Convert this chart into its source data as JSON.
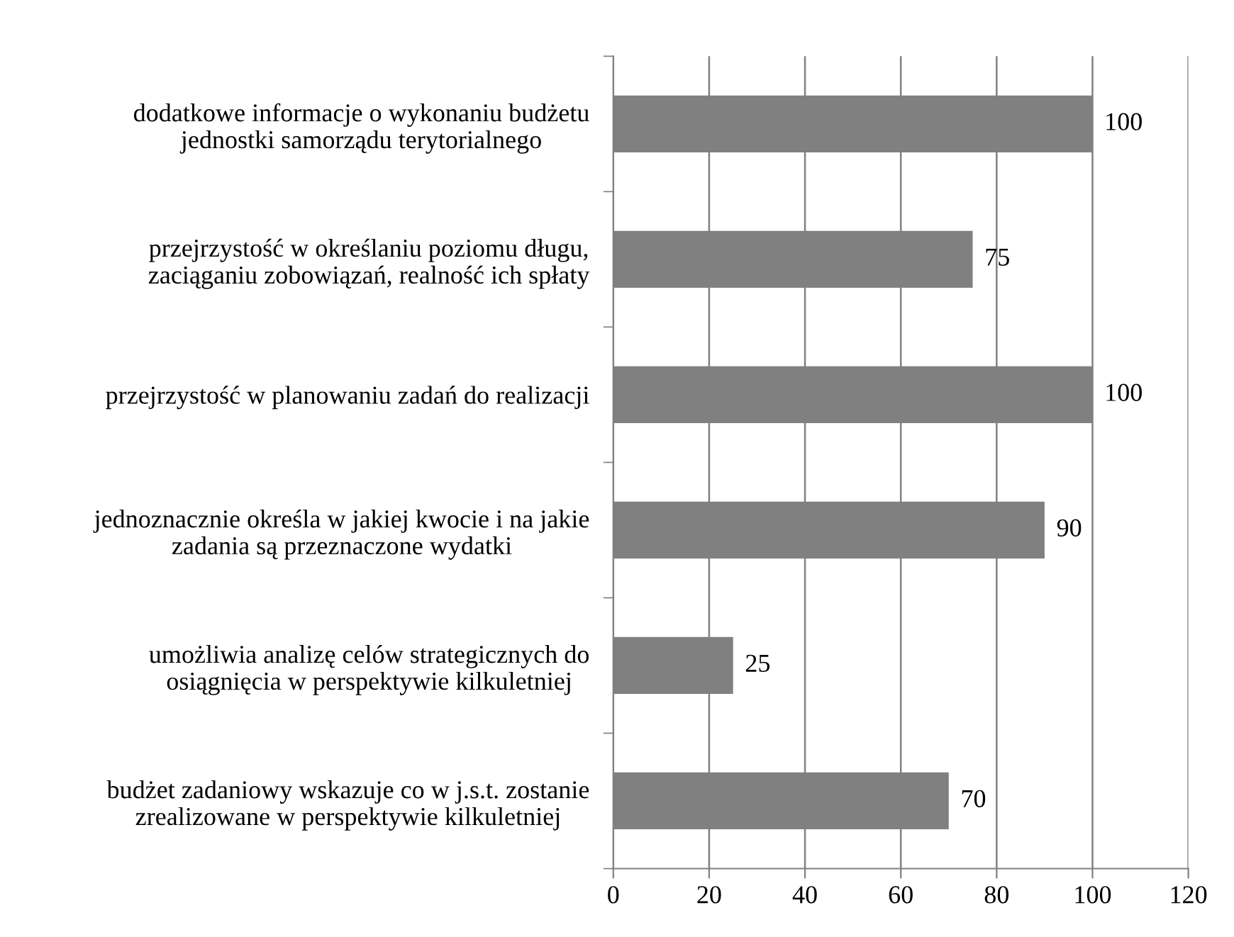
{
  "chart_data": {
    "type": "bar",
    "orientation": "horizontal",
    "categories": [
      "dodatkowe informacje o wykonaniu budżetu\njednostki samorządu terytorialnego",
      "przejrzystość w określaniu poziomu długu,\nzaciąganiu zobowiązań, realność ich spłaty",
      "przejrzystość w planowaniu zadań do realizacji",
      "jednoznacznie określa w jakiej kwocie i na jakie\nzadania są przeznaczone wydatki",
      "umożliwia analizę celów strategicznych do\nosiągnięcia w perspektywie kilkuletniej",
      "budżet zadaniowy wskazuje co w j.s.t. zostanie\nzrealizowane w perspektywie kilkuletniej"
    ],
    "values": [
      100,
      75,
      100,
      90,
      25,
      70
    ],
    "color": "#808080",
    "xlim": [
      0,
      120
    ],
    "xticks": [
      0,
      20,
      40,
      60,
      80,
      100,
      120
    ],
    "grid": "x",
    "data_labels": true,
    "legend": false
  }
}
